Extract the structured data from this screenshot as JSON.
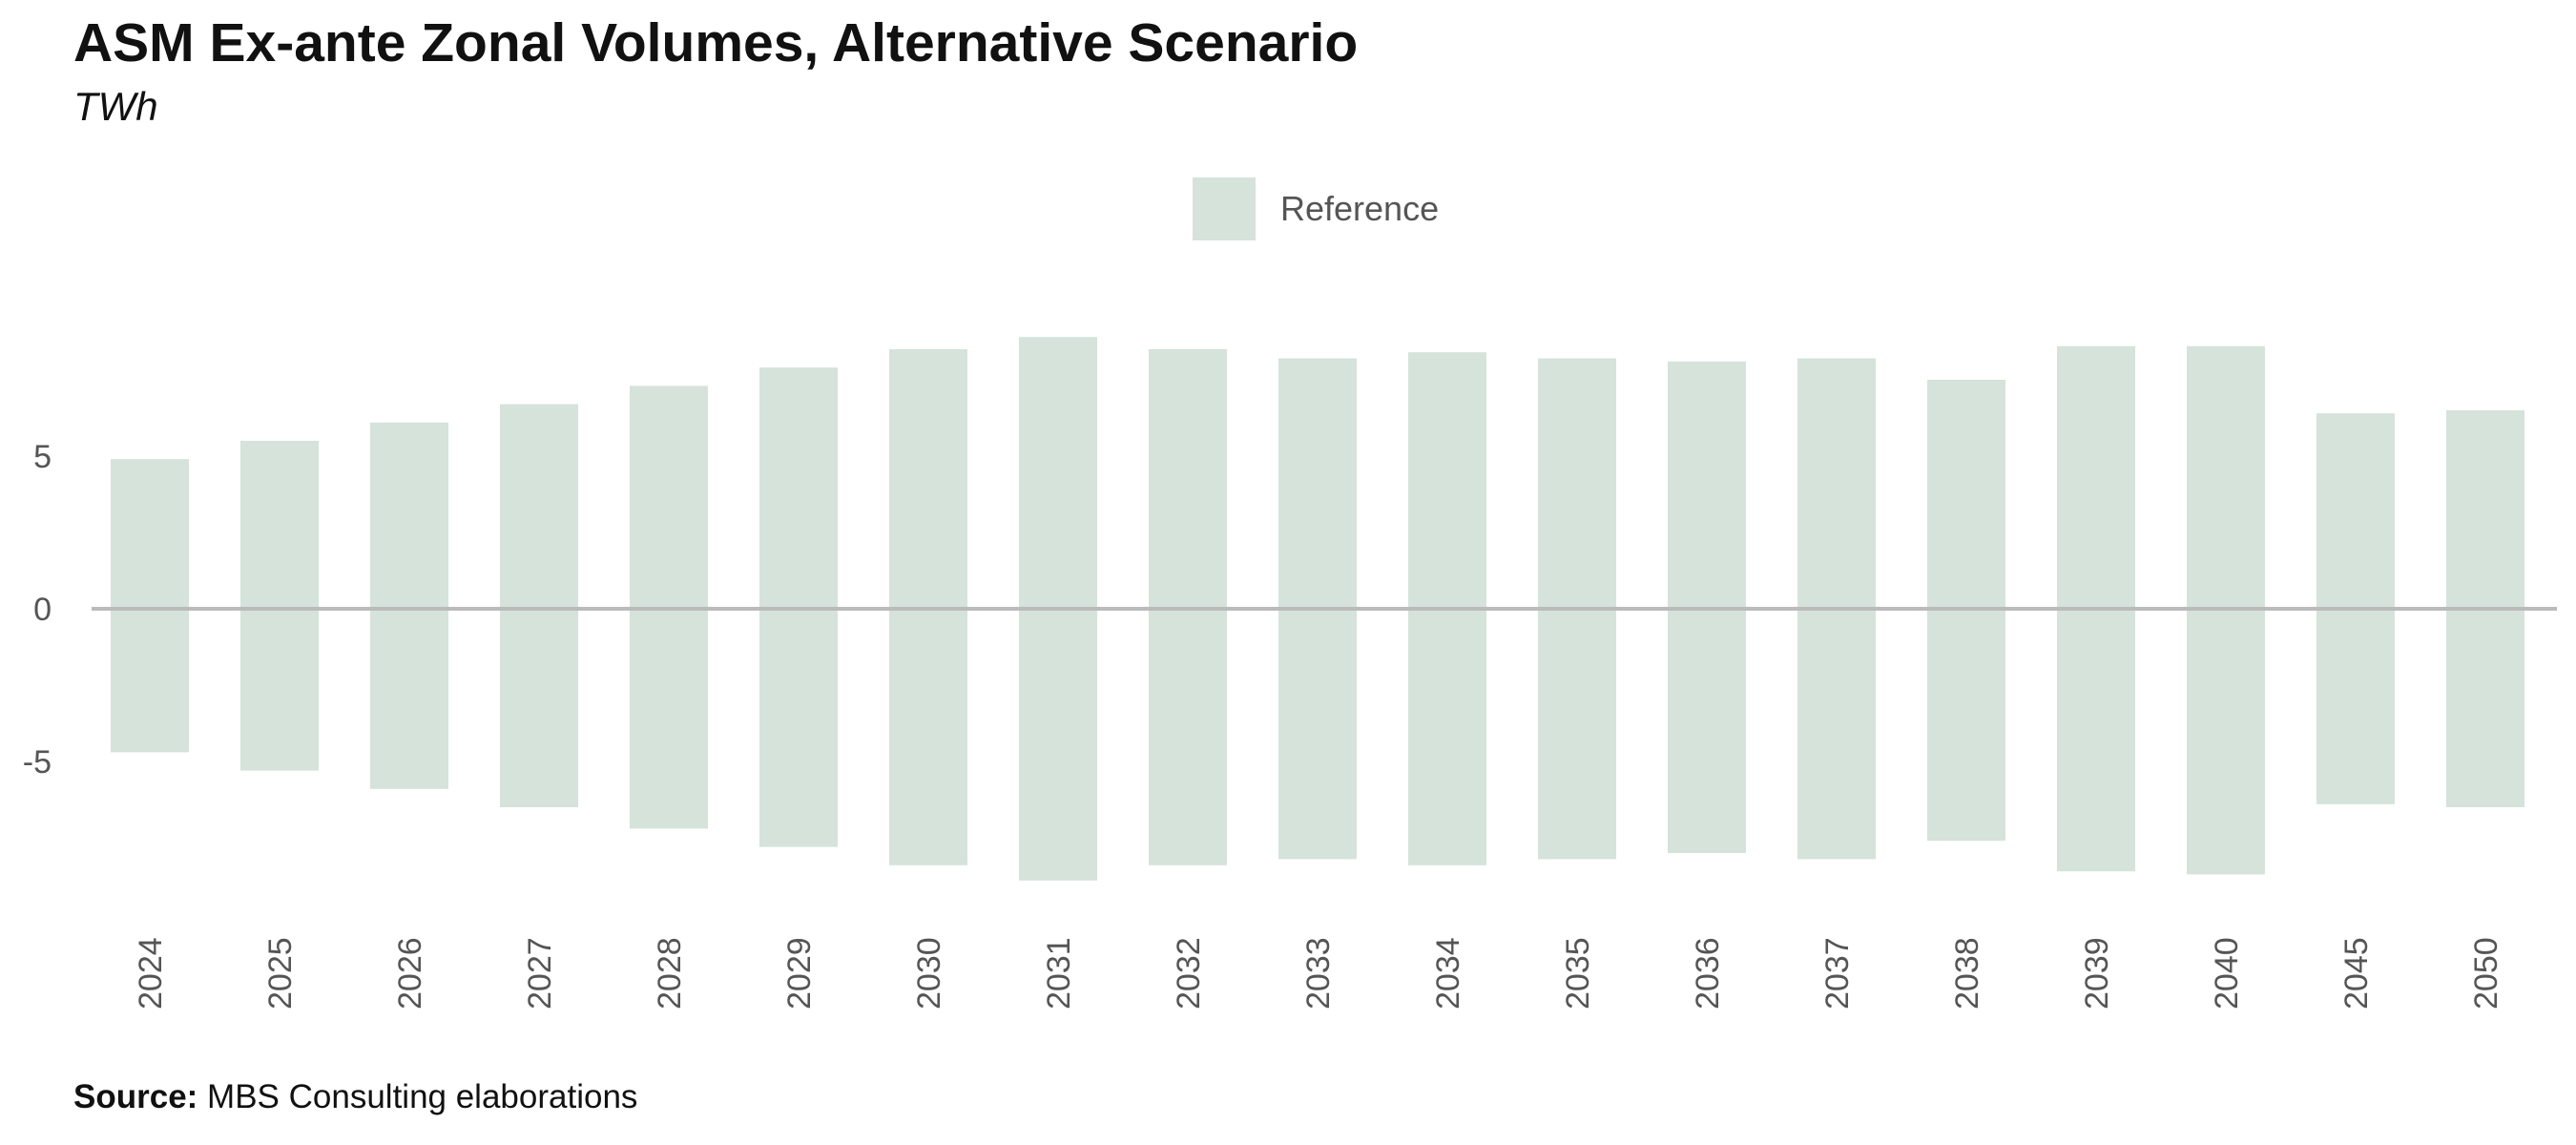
{
  "header": {
    "title": "ASM Ex-ante Zonal Volumes, Alternative Scenario",
    "subtitle": "TWh"
  },
  "legend": {
    "label": "Reference",
    "color": "#d5e3da"
  },
  "footer": {
    "source_label": "Source:",
    "source_text": "MBS Consulting elaborations"
  },
  "colors": {
    "bar": "#d5e3da",
    "zero_line": "#bbbbbb",
    "tick_text": "#555555"
  },
  "chart_data": {
    "type": "bar",
    "title": "ASM Ex-ante Zonal Volumes, Alternative Scenario",
    "subtitle": "TWh",
    "xlabel": "",
    "ylabel": "",
    "categories": [
      "2024",
      "2025",
      "2026",
      "2027",
      "2028",
      "2029",
      "2030",
      "2031",
      "2032",
      "2033",
      "2034",
      "2035",
      "2036",
      "2037",
      "2038",
      "2039",
      "2040",
      "2045",
      "2050"
    ],
    "series": [
      {
        "name": "Reference",
        "values_positive": [
          4.9,
          5.5,
          6.1,
          6.7,
          7.3,
          7.9,
          8.5,
          8.9,
          8.5,
          8.2,
          8.4,
          8.2,
          8.1,
          8.2,
          7.5,
          8.6,
          8.6,
          6.4,
          6.5
        ],
        "values_negative": [
          -4.7,
          -5.3,
          -5.9,
          -6.5,
          -7.2,
          -7.8,
          -8.4,
          -8.9,
          -8.4,
          -8.2,
          -8.4,
          -8.2,
          -8.0,
          -8.2,
          -7.6,
          -8.6,
          -8.7,
          -6.4,
          -6.5
        ]
      }
    ],
    "yticks": [
      5,
      0,
      -5
    ],
    "ylim": [
      -9.5,
      9.5
    ],
    "grid": false,
    "zero_line": true,
    "legend_position": "top-center",
    "x_tick_rotation": "vertical"
  }
}
